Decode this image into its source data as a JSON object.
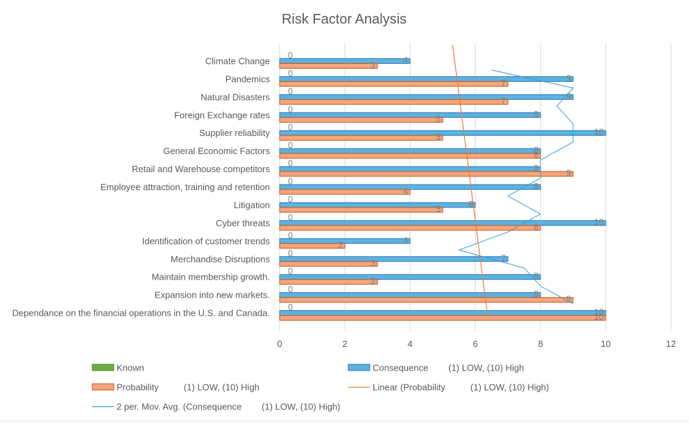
{
  "chart_data": {
    "type": "bar",
    "orientation": "horizontal",
    "title": "Risk Factor Analysis",
    "categories": [
      "Climate Change",
      "Pandemics",
      "Natural Disasters",
      "Foreign Exchange rates",
      "Supplier reliability",
      "General Economic Factors",
      "Retail and Warehouse competitors",
      "Employee attraction, training and retention",
      "Litigation",
      "Cyber threats",
      "Identification of customer trends",
      "Merchandise Disruptions",
      "Maintain membership growth.",
      "Expansion into new markets.",
      "Dependance on the financial operations in the U.S. and Canada."
    ],
    "series": [
      {
        "name": "Known",
        "color": "#70ad47",
        "values": [
          0,
          0,
          0,
          0,
          0,
          0,
          0,
          0,
          0,
          0,
          0,
          0,
          0,
          0,
          0
        ]
      },
      {
        "name": "Consequence        (1) LOW, (10) High",
        "color": "#5bb3e0",
        "values": [
          4,
          9,
          9,
          8,
          10,
          8,
          8,
          8,
          6,
          10,
          4,
          7,
          8,
          8,
          10
        ]
      },
      {
        "name": "Probability          (1) LOW, (10) High",
        "color": "#f4a582",
        "values": [
          3,
          7,
          7,
          5,
          5,
          8,
          9,
          4,
          5,
          8,
          2,
          3,
          3,
          9,
          10
        ]
      }
    ],
    "trendlines": [
      {
        "name": "Linear (Probability          (1) LOW, (10) High)",
        "color": "#ed7d31",
        "kind": "linear",
        "of_series": 2
      },
      {
        "name": "2 per. Mov. Avg. (Consequence        (1) LOW, (10) High)",
        "color": "#2e9fd8",
        "kind": "moving-average",
        "period": 2,
        "of_series": 1
      }
    ],
    "xlim": [
      0,
      12
    ],
    "xticks": [
      0,
      2,
      4,
      6,
      8,
      10,
      12
    ],
    "grid": true,
    "legend_position": "bottom"
  }
}
